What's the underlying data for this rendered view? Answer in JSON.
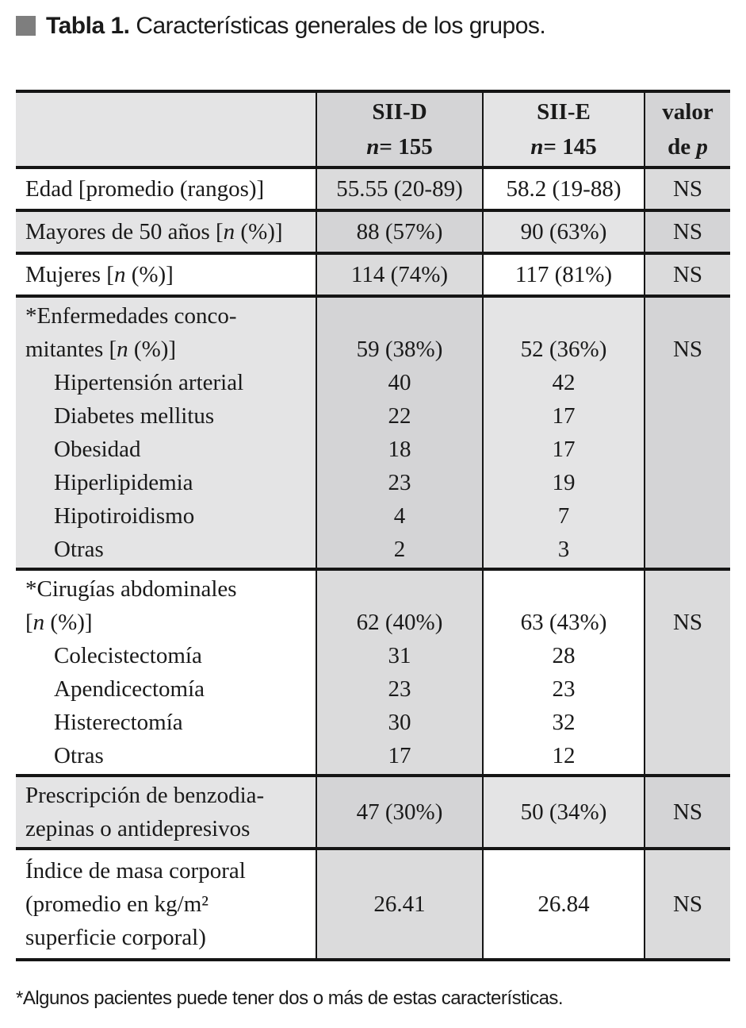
{
  "title": {
    "prefix": "Tabla 1.",
    "text": " Características generales de los grupos."
  },
  "table": {
    "header": {
      "label": "",
      "d_name": "SII-D",
      "d_n_italic": "n",
      "d_n_rest": "=  155",
      "e_name": "SII-E",
      "e_n_italic": "n",
      "e_n_rest": "=  145",
      "p_line1": "valor",
      "p_line2_prefix": "de ",
      "p_line2_italic": "p"
    },
    "rows": [
      {
        "label_lines": [
          "Edad [promedio (rangos)]"
        ],
        "d": "55.55 (20-89)",
        "e": "58.2 (19-88)",
        "p": "NS",
        "shaded": false,
        "subs": []
      },
      {
        "label_lines": [
          "Mayores de 50 años [n (%)]"
        ],
        "d": "88 (57%)",
        "e": "90 (63%)",
        "p": "NS",
        "shaded": true,
        "subs": []
      },
      {
        "label_lines": [
          "Mujeres [n (%)]"
        ],
        "d": "114 (74%)",
        "e": "117 (81%)",
        "p": "NS",
        "shaded": false,
        "subs": []
      },
      {
        "label_lines": [
          "*Enfermedades conco-",
          "mitantes [n (%)]"
        ],
        "d": "59 (38%)",
        "e": "52 (36%)",
        "p": "NS",
        "shaded": true,
        "subs": [
          {
            "label": "Hipertensión arterial",
            "d": "40",
            "e": "42"
          },
          {
            "label": "Diabetes mellitus",
            "d": "22",
            "e": "17"
          },
          {
            "label": "Obesidad",
            "d": "18",
            "e": "17"
          },
          {
            "label": "Hiperlipidemia",
            "d": "23",
            "e": "19"
          },
          {
            "label": "Hipotiroidismo",
            "d": "4",
            "e": "7"
          },
          {
            "label": "Otras",
            "d": "2",
            "e": "3"
          }
        ]
      },
      {
        "label_lines": [
          "*Cirugías abdominales",
          "[n (%)]"
        ],
        "d": "62 (40%)",
        "e": "63 (43%)",
        "p": "NS",
        "shaded": false,
        "subs": [
          {
            "label": "Colecistectomía",
            "d": "31",
            "e": "28"
          },
          {
            "label": "Apendicectomía",
            "d": "23",
            "e": "23"
          },
          {
            "label": "Histerectomía",
            "d": "30",
            "e": "32"
          },
          {
            "label": "Otras",
            "d": "17",
            "e": "12"
          }
        ]
      },
      {
        "label_lines": [
          "Prescripción de benzodia-",
          "zepinas o antidepresivos"
        ],
        "d": "47 (30%)",
        "e": "50 (34%)",
        "p": "NS",
        "shaded": true,
        "subs": []
      },
      {
        "label_lines": [
          "Índice de masa corporal",
          "(promedio en kg/m²",
          "superficie corporal)"
        ],
        "d": "26.41",
        "e": "26.84",
        "p": "NS",
        "shaded": false,
        "subs": []
      }
    ]
  },
  "footnote": "*Algunos pacientes puede tener dos o más de estas características.",
  "colors": {
    "title_square": "#7e7e7e",
    "border": "#151515",
    "shaded_row": "#e4e4e5",
    "shaded_col": "#dbdbdc",
    "shaded_both": "#d4d4d6",
    "text": "#1a1a1a"
  }
}
